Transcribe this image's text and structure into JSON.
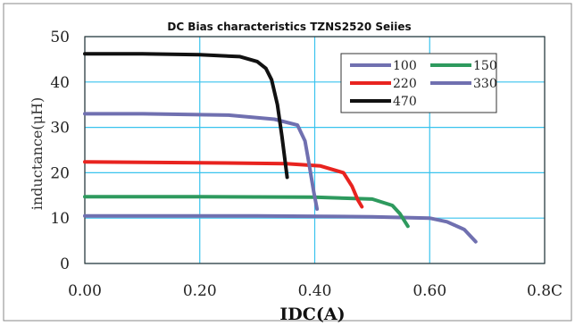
{
  "chart_data": {
    "type": "line",
    "title": "DC Bias characteristics TZNS2520 Seiies",
    "xlabel": "IDC(A)",
    "ylabel": "inductance(μH)",
    "xlim": [
      0,
      0.8
    ],
    "ylim": [
      0,
      50
    ],
    "xticks": [
      "0.00",
      "0.20",
      "0.40",
      "0.60",
      "0.8C"
    ],
    "yticks": [
      "0",
      "10",
      "20",
      "30",
      "40",
      "50"
    ],
    "grid": true,
    "legend": "top-right",
    "series": [
      {
        "name": "100",
        "color": "#7070b0",
        "points": [
          [
            0,
            10.5
          ],
          [
            0.1,
            10.5
          ],
          [
            0.3,
            10.5
          ],
          [
            0.5,
            10.3
          ],
          [
            0.6,
            10.0
          ],
          [
            0.63,
            9.2
          ],
          [
            0.66,
            7.5
          ],
          [
            0.68,
            4.8
          ]
        ]
      },
      {
        "name": "150",
        "color": "#2e9a5e",
        "points": [
          [
            0,
            14.7
          ],
          [
            0.2,
            14.7
          ],
          [
            0.4,
            14.6
          ],
          [
            0.5,
            14.2
          ],
          [
            0.535,
            12.8
          ],
          [
            0.548,
            11.0
          ],
          [
            0.562,
            8.2
          ]
        ]
      },
      {
        "name": "220",
        "color": "#e8231f",
        "points": [
          [
            0,
            22.4
          ],
          [
            0.2,
            22.2
          ],
          [
            0.35,
            22.0
          ],
          [
            0.41,
            21.5
          ],
          [
            0.45,
            20.0
          ],
          [
            0.465,
            17.0
          ],
          [
            0.475,
            14.0
          ],
          [
            0.482,
            12.5
          ]
        ]
      },
      {
        "name": "330",
        "color": "#7070b0",
        "points": [
          [
            0,
            33.0
          ],
          [
            0.1,
            33.0
          ],
          [
            0.25,
            32.7
          ],
          [
            0.33,
            31.8
          ],
          [
            0.37,
            30.5
          ],
          [
            0.383,
            27.0
          ],
          [
            0.39,
            22.0
          ],
          [
            0.398,
            16.0
          ],
          [
            0.404,
            12.0
          ]
        ]
      },
      {
        "name": "470",
        "color": "#111111",
        "points": [
          [
            0,
            46.2
          ],
          [
            0.1,
            46.2
          ],
          [
            0.2,
            46.0
          ],
          [
            0.27,
            45.6
          ],
          [
            0.3,
            44.5
          ],
          [
            0.315,
            43.0
          ],
          [
            0.325,
            40.5
          ],
          [
            0.335,
            35.0
          ],
          [
            0.343,
            28.0
          ],
          [
            0.352,
            19.0
          ]
        ]
      }
    ]
  }
}
